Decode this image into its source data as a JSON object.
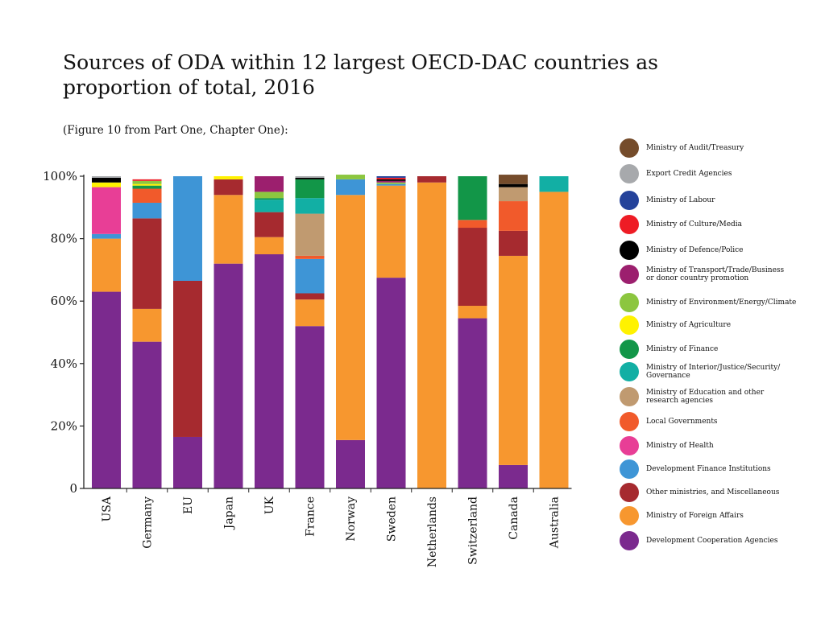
{
  "chart_data": {
    "type": "bar",
    "stacked": true,
    "title": "Sources of ODA within 12 largest OECD-DAC countries as proportion of total, 2016",
    "subtitle": "(Figure 10 from Part One, Chapter One):",
    "ylim": [
      0,
      100
    ],
    "yticks": [
      {
        "value": 0,
        "label": "0"
      },
      {
        "value": 20,
        "label": "20%"
      },
      {
        "value": 40,
        "label": "40%"
      },
      {
        "value": 60,
        "label": "60%"
      },
      {
        "value": 80,
        "label": "80%"
      },
      {
        "value": 100,
        "label": "100%"
      }
    ],
    "categories": [
      "USA",
      "Germany",
      "EU",
      "Japan",
      "UK",
      "France",
      "Norway",
      "Sweden",
      "Netherlands",
      "Switzerland",
      "Canada",
      "Australia"
    ],
    "legend_position": "right",
    "series": [
      {
        "name": "Development Cooperation Agencies",
        "color": "#7b2a8e",
        "values": [
          63,
          47,
          16.5,
          72,
          75,
          52,
          15.5,
          67.5,
          0,
          54.5,
          7.5,
          0
        ]
      },
      {
        "name": "Ministry of Foreign Affairs",
        "color": "#f7972f",
        "values": [
          17,
          10.5,
          0,
          22,
          5.5,
          8.5,
          78.5,
          29.5,
          98,
          4,
          67,
          95
        ]
      },
      {
        "name": "Other ministries, and Miscellaneous",
        "color": "#a62a2f",
        "values": [
          0,
          29,
          50,
          5,
          8,
          2,
          0,
          0,
          2,
          25,
          8,
          0
        ]
      },
      {
        "name": "Development Finance Institutions",
        "color": "#3e95d6",
        "values": [
          1.5,
          5,
          33.5,
          0,
          0,
          11,
          5,
          0.5,
          0,
          0,
          0,
          0
        ]
      },
      {
        "name": "Ministry of Health",
        "color": "#e83e96",
        "values": [
          15,
          0,
          0,
          0,
          0,
          0,
          0,
          0,
          0,
          0,
          0,
          0
        ]
      },
      {
        "name": "Local Governments",
        "color": "#f15a2b",
        "values": [
          0,
          4.5,
          0,
          0,
          0,
          1,
          0,
          0,
          0,
          2.5,
          9.5,
          0
        ]
      },
      {
        "name": "Ministry of Education and other\nresearch agencies",
        "color": "#c09a70",
        "values": [
          0,
          0,
          0,
          0,
          0,
          13.5,
          0,
          0,
          0,
          0,
          4.5,
          0
        ]
      },
      {
        "name": "Ministry of Interior/Justice/Security/\nGovernance",
        "color": "#12afa4",
        "values": [
          0,
          0,
          0,
          0,
          4,
          5,
          0,
          0,
          0,
          0,
          0,
          5
        ]
      },
      {
        "name": "Ministry of Finance",
        "color": "#129648",
        "values": [
          0,
          1,
          0,
          0,
          0.5,
          6,
          0,
          0,
          0,
          14,
          0,
          0
        ]
      },
      {
        "name": "Ministry of Agriculture",
        "color": "#fff200",
        "values": [
          1.5,
          0.5,
          0,
          1,
          0,
          0,
          0,
          0,
          0,
          0,
          0,
          0
        ]
      },
      {
        "name": "Ministry of Environment/Energy/Climate",
        "color": "#8cc63f",
        "values": [
          0,
          1,
          0,
          0,
          2,
          0,
          1.5,
          0.5,
          0,
          0,
          0,
          0
        ]
      },
      {
        "name": "Ministry of Transport/Trade/Business\nor donor country promotion",
        "color": "#9c1f6e",
        "values": [
          0,
          0,
          0,
          0,
          5,
          0,
          0,
          0.5,
          0,
          0,
          0,
          0
        ]
      },
      {
        "name": "Ministry of Defence/Police",
        "color": "#000000",
        "values": [
          1.5,
          0,
          0,
          0,
          0,
          0.5,
          0,
          0.5,
          0,
          0,
          1,
          0
        ]
      },
      {
        "name": "Ministry of Culture/Media",
        "color": "#ee1c25",
        "values": [
          0,
          0.5,
          0,
          0,
          0,
          0,
          0,
          0.5,
          0,
          0,
          0,
          0
        ]
      },
      {
        "name": "Ministry of Labour",
        "color": "#24429a",
        "values": [
          0,
          0,
          0,
          0,
          0,
          0,
          0,
          0.5,
          0,
          0,
          0,
          0
        ]
      },
      {
        "name": "Export Credit Agencies",
        "color": "#a7a9ac",
        "values": [
          0.5,
          0,
          0,
          0,
          0,
          0.5,
          0,
          0,
          0,
          0,
          0,
          0
        ]
      },
      {
        "name": "Ministry of Audit/Treasury",
        "color": "#754c2b",
        "values": [
          0,
          0,
          0,
          0,
          0,
          0,
          0,
          0,
          0,
          0,
          3,
          0
        ]
      }
    ]
  }
}
